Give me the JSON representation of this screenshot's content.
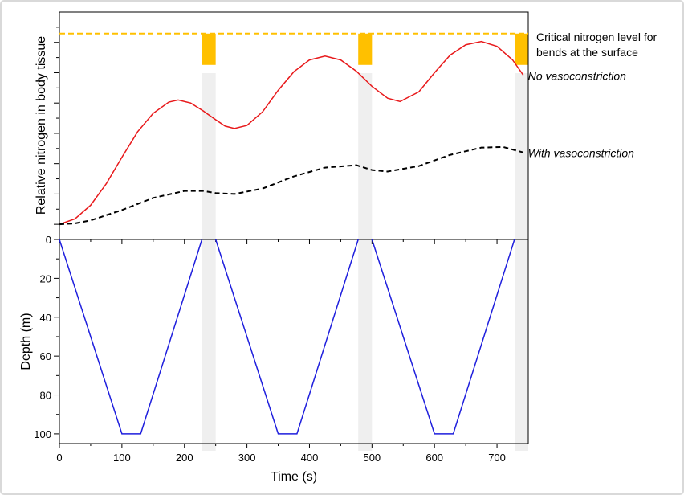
{
  "chart_data": [
    {
      "type": "line",
      "ylabel": "Relative nitrogen in body tissue",
      "xlim": [
        0,
        750
      ],
      "xticks": [
        0,
        100,
        200,
        300,
        400,
        500,
        600,
        700
      ],
      "minor_xticks": [
        50,
        150,
        250,
        350,
        450,
        550,
        650
      ],
      "xtick_labels": false,
      "ylim": [
        -0.5,
        7
      ],
      "yticks": [
        0,
        1,
        2,
        3,
        4,
        5,
        6
      ],
      "minor_yticks": [
        0.5,
        1.5,
        2.5,
        3.5,
        4.5,
        5.5,
        6.5
      ],
      "ytick_labels": false,
      "reference": {
        "value": 6.29,
        "color": "#ffc000",
        "label": [
          "Critical nitrogen level for",
          "bends at the surface"
        ]
      },
      "highlight_intervals": [
        [
          228,
          250
        ],
        [
          478,
          500
        ],
        [
          729,
          750
        ]
      ],
      "series": [
        {
          "name": "No vasoconstriction",
          "color": "#e8191b",
          "dash": false,
          "x": [
            0,
            25,
            50,
            75,
            100,
            125,
            150,
            175,
            190,
            210,
            230,
            250,
            265,
            280,
            300,
            325,
            350,
            375,
            400,
            425,
            450,
            475,
            500,
            525,
            545,
            575,
            600,
            625,
            650,
            675,
            700,
            725,
            742
          ],
          "values": [
            0,
            0.18,
            0.63,
            1.34,
            2.21,
            3.05,
            3.66,
            4.03,
            4.1,
            4.0,
            3.74,
            3.45,
            3.24,
            3.16,
            3.26,
            3.71,
            4.42,
            5.03,
            5.42,
            5.55,
            5.42,
            5.05,
            4.55,
            4.16,
            4.05,
            4.37,
            5.0,
            5.58,
            5.92,
            6.03,
            5.87,
            5.42,
            4.92
          ]
        },
        {
          "name": "With vasoconstriction",
          "color": "#000000",
          "dash": true,
          "x": [
            0,
            25,
            50,
            100,
            150,
            200,
            230,
            250,
            280,
            325,
            375,
            425,
            475,
            500,
            525,
            575,
            625,
            675,
            710,
            742
          ],
          "values": [
            0,
            0.03,
            0.13,
            0.47,
            0.87,
            1.1,
            1.1,
            1.03,
            1.0,
            1.18,
            1.58,
            1.87,
            1.95,
            1.79,
            1.74,
            1.92,
            2.29,
            2.53,
            2.55,
            2.37
          ]
        }
      ]
    },
    {
      "type": "line",
      "xlabel": "Time (s)",
      "ylabel": "Depth (m)",
      "xlim": [
        0,
        750
      ],
      "xticks": [
        0,
        100,
        200,
        300,
        400,
        500,
        600,
        700
      ],
      "minor_xticks": [
        50,
        150,
        250,
        350,
        450,
        550,
        650
      ],
      "xtick_labels": true,
      "ylim": [
        0,
        105
      ],
      "yinvert": true,
      "yticks": [
        0,
        20,
        40,
        60,
        80,
        100
      ],
      "minor_yticks": [
        10,
        30,
        50,
        70,
        90
      ],
      "ytick_labels": true,
      "series": [
        {
          "color": "#1f1fdd",
          "dash": false,
          "x": [
            0,
            100,
            130,
            228,
            239,
            250,
            350,
            380,
            478,
            489,
            500,
            600,
            630,
            728
          ],
          "values": [
            0,
            100,
            100,
            0,
            null,
            0,
            100,
            100,
            0,
            null,
            0,
            100,
            100,
            0
          ]
        }
      ]
    }
  ]
}
